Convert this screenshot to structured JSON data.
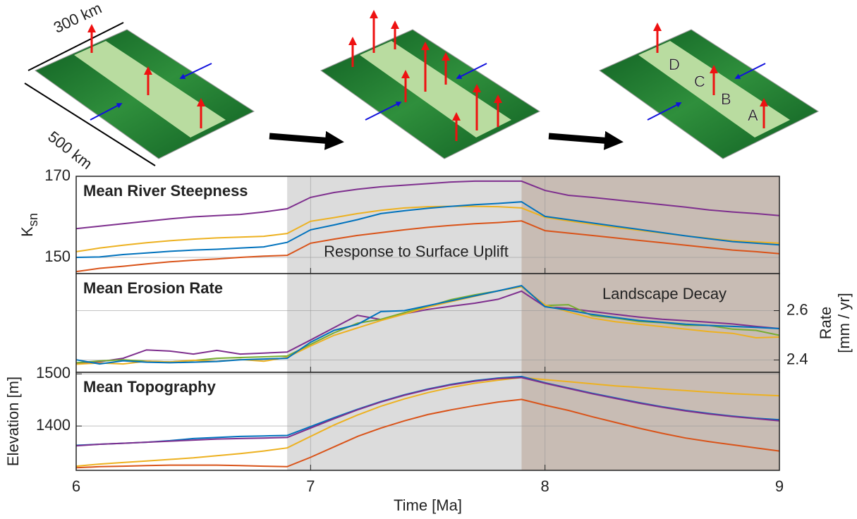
{
  "illustration": {
    "labels": [
      {
        "text": "300 km",
        "color": "#000000"
      },
      {
        "text": "500 km",
        "color": "#000000"
      },
      {
        "text": "D",
        "color": "#7e2f8e"
      },
      {
        "text": "C",
        "color": "#edb120"
      },
      {
        "text": "B",
        "color": "#d95319"
      },
      {
        "text": "A",
        "color": "#0072bd"
      }
    ]
  },
  "chart_data": [
    {
      "type": "line",
      "title": "Mean River Steepness",
      "ylabel": "K",
      "ylabel_sub": "sn",
      "annotation": "Response to Surface Uplift",
      "x": [
        6.0,
        6.1,
        6.2,
        6.3,
        6.4,
        6.5,
        6.6,
        6.7,
        6.8,
        6.9,
        7.0,
        7.1,
        7.2,
        7.3,
        7.4,
        7.5,
        7.6,
        7.7,
        7.8,
        7.9,
        8.0,
        8.1,
        8.2,
        8.3,
        8.4,
        8.5,
        8.6,
        8.7,
        8.8,
        8.9,
        9.0
      ],
      "xlim": [
        6,
        9
      ],
      "xticks": [
        6,
        7,
        8,
        9
      ],
      "show_xtick_labels": false,
      "ylim": [
        146,
        170
      ],
      "yticks": [
        150,
        170
      ],
      "grid": true,
      "shaded_regions": [
        {
          "xlim": [
            6.9,
            7.9
          ],
          "color": "#dcdcdc"
        },
        {
          "xlim": [
            7.9,
            9
          ],
          "color": "#c8bcb4"
        }
      ],
      "series": [
        {
          "color": "#7e2f8e",
          "values": [
            157.1,
            157.7,
            158.3,
            158.9,
            159.5,
            160.0,
            160.3,
            160.6,
            161.2,
            162.0,
            164.8,
            166.0,
            166.8,
            167.4,
            167.8,
            168.2,
            168.6,
            168.8,
            168.8,
            168.8,
            166.5,
            165.3,
            164.8,
            164.2,
            163.6,
            163.0,
            162.4,
            161.7,
            161.2,
            160.8,
            160.3
          ]
        },
        {
          "color": "#edb120",
          "values": [
            151.4,
            152.3,
            153.0,
            153.6,
            154.1,
            154.5,
            154.8,
            155.0,
            155.2,
            155.9,
            158.9,
            159.8,
            160.8,
            161.6,
            162.2,
            162.5,
            162.6,
            162.6,
            162.5,
            162.2,
            159.9,
            159.0,
            158.2,
            157.4,
            156.7,
            156.0,
            155.3,
            154.7,
            154.1,
            153.8,
            153.5
          ]
        },
        {
          "color": "#0072bd",
          "values": [
            150.0,
            150.1,
            150.7,
            151.1,
            151.5,
            151.8,
            152.0,
            152.3,
            152.6,
            153.7,
            156.8,
            158.0,
            159.3,
            160.8,
            161.5,
            162.1,
            162.6,
            163.0,
            163.3,
            163.7,
            160.1,
            159.3,
            158.5,
            157.7,
            156.9,
            156.1,
            155.3,
            154.6,
            153.9,
            153.5,
            153.1
          ]
        },
        {
          "color": "#d95319",
          "values": [
            146.5,
            147.3,
            147.8,
            148.4,
            148.9,
            149.3,
            149.6,
            150.0,
            150.3,
            150.5,
            153.5,
            154.5,
            155.4,
            156.1,
            156.8,
            157.4,
            157.9,
            158.3,
            158.6,
            159.0,
            156.6,
            156.0,
            155.4,
            154.8,
            154.2,
            153.6,
            153.0,
            152.4,
            151.8,
            151.4,
            150.9
          ]
        }
      ]
    },
    {
      "type": "line",
      "title": "Mean Erosion Rate",
      "y2label": "Rate",
      "y2label_unit": "[mm / yr]",
      "annotation": "Landscape Decay",
      "x": [
        6.0,
        6.1,
        6.2,
        6.3,
        6.4,
        6.5,
        6.6,
        6.7,
        6.8,
        6.9,
        7.0,
        7.1,
        7.2,
        7.3,
        7.4,
        7.5,
        7.6,
        7.7,
        7.8,
        7.9,
        8.0,
        8.1,
        8.2,
        8.3,
        8.4,
        8.5,
        8.6,
        8.7,
        8.8,
        8.9,
        9.0
      ],
      "xlim": [
        6,
        9
      ],
      "xticks": [
        6,
        7,
        8,
        9
      ],
      "show_xtick_labels": false,
      "y2lim": [
        2.35,
        2.75
      ],
      "y2ticks": [
        2.4,
        2.6
      ],
      "grid": true,
      "shaded_regions": [
        {
          "xlim": [
            6.9,
            7.9
          ],
          "color": "#dcdcdc"
        },
        {
          "xlim": [
            7.9,
            9
          ],
          "color": "#c8bcb4"
        }
      ],
      "series": [
        {
          "color": "#7e2f8e",
          "axis": "y2",
          "values": [
            2.387,
            2.393,
            2.407,
            2.441,
            2.436,
            2.424,
            2.439,
            2.424,
            2.428,
            2.432,
            2.481,
            2.531,
            2.581,
            2.564,
            2.587,
            2.605,
            2.618,
            2.63,
            2.646,
            2.679,
            2.616,
            2.609,
            2.597,
            2.585,
            2.574,
            2.565,
            2.559,
            2.553,
            2.546,
            2.536,
            2.527
          ]
        },
        {
          "color": "#77ac30",
          "axis": "y2",
          "values": [
            2.389,
            2.396,
            2.401,
            2.395,
            2.392,
            2.398,
            2.407,
            2.41,
            2.413,
            2.416,
            2.463,
            2.51,
            2.549,
            2.565,
            2.592,
            2.617,
            2.645,
            2.664,
            2.68,
            2.697,
            2.621,
            2.624,
            2.58,
            2.57,
            2.556,
            2.551,
            2.541,
            2.54,
            2.525,
            2.52,
            2.5
          ]
        },
        {
          "color": "#edb120",
          "axis": "y2",
          "values": [
            2.383,
            2.388,
            2.384,
            2.395,
            2.392,
            2.399,
            2.394,
            2.402,
            2.395,
            2.411,
            2.457,
            2.5,
            2.53,
            2.56,
            2.586,
            2.614,
            2.637,
            2.658,
            2.68,
            2.697,
            2.623,
            2.595,
            2.57,
            2.555,
            2.545,
            2.535,
            2.525,
            2.515,
            2.508,
            2.49,
            2.493
          ]
        },
        {
          "color": "#0072bd",
          "axis": "y2",
          "values": [
            2.401,
            2.384,
            2.397,
            2.391,
            2.389,
            2.391,
            2.394,
            2.401,
            2.404,
            2.407,
            2.472,
            2.52,
            2.544,
            2.596,
            2.6,
            2.62,
            2.64,
            2.66,
            2.68,
            2.701,
            2.616,
            2.602,
            2.585,
            2.572,
            2.56,
            2.553,
            2.545,
            2.54,
            2.536,
            2.532,
            2.527
          ]
        }
      ]
    },
    {
      "type": "line",
      "title": "Mean Topography",
      "ylabel": "Elevation [m]",
      "xlabel": "Time [Ma]",
      "x": [
        6.0,
        6.1,
        6.2,
        6.3,
        6.4,
        6.5,
        6.6,
        6.7,
        6.8,
        6.9,
        7.0,
        7.1,
        7.2,
        7.3,
        7.4,
        7.5,
        7.6,
        7.7,
        7.8,
        7.9,
        8.0,
        8.1,
        8.2,
        8.3,
        8.4,
        8.5,
        8.6,
        8.7,
        8.8,
        8.9,
        9.0
      ],
      "xlim": [
        6,
        9
      ],
      "xticks": [
        6,
        7,
        8,
        9
      ],
      "show_xtick_labels": true,
      "ylim": [
        1315,
        1503
      ],
      "yticks": [
        1400,
        1500
      ],
      "grid": true,
      "shaded_regions": [
        {
          "xlim": [
            6.9,
            7.9
          ],
          "color": "#dcdcdc"
        },
        {
          "xlim": [
            7.9,
            9
          ],
          "color": "#c8bcb4"
        }
      ],
      "series": [
        {
          "color": "#edb120",
          "values": [
            1323,
            1327,
            1330,
            1333,
            1336,
            1339,
            1343,
            1347,
            1352,
            1358,
            1380,
            1402,
            1421,
            1438,
            1452,
            1464,
            1474,
            1482,
            1488,
            1493,
            1489,
            1485,
            1481,
            1477,
            1474,
            1471,
            1468,
            1465,
            1462,
            1460,
            1458
          ]
        },
        {
          "color": "#d95319",
          "values": [
            1320,
            1322,
            1323,
            1324,
            1325,
            1325,
            1325,
            1324,
            1323,
            1322,
            1340,
            1360,
            1380,
            1396,
            1410,
            1422,
            1431,
            1439,
            1446,
            1451,
            1440,
            1430,
            1418,
            1407,
            1396,
            1386,
            1377,
            1370,
            1364,
            1358,
            1352
          ]
        },
        {
          "color": "#0072bd",
          "values": [
            1363,
            1365,
            1367,
            1369,
            1372,
            1376,
            1378,
            1380,
            1381,
            1382,
            1399,
            1416,
            1432,
            1447,
            1460,
            1471,
            1480,
            1487,
            1492,
            1495,
            1483,
            1473,
            1463,
            1454,
            1445,
            1437,
            1430,
            1424,
            1419,
            1415,
            1412
          ]
        },
        {
          "color": "#7e2f8e",
          "values": [
            1362,
            1365,
            1367,
            1369,
            1371,
            1373,
            1375,
            1376,
            1377,
            1378,
            1396,
            1414,
            1431,
            1446,
            1459,
            1470,
            1479,
            1486,
            1491,
            1493,
            1482,
            1472,
            1462,
            1453,
            1444,
            1436,
            1429,
            1423,
            1418,
            1414,
            1410
          ]
        }
      ]
    }
  ]
}
